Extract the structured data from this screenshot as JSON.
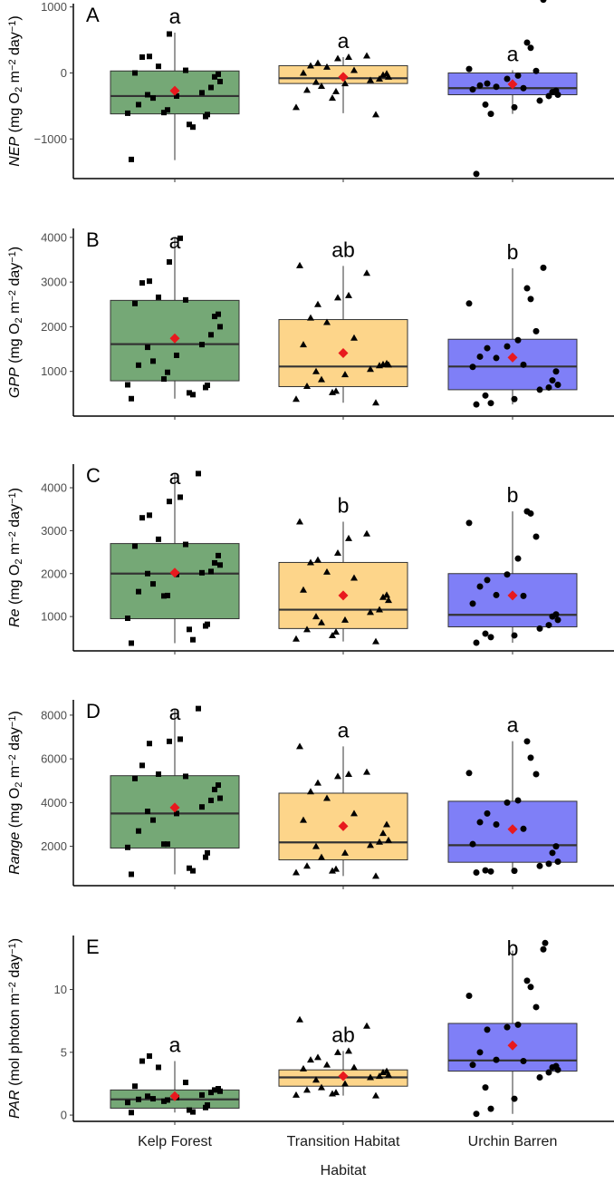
{
  "figure": {
    "x_axis_title": "Habitat",
    "categories": [
      "Kelp Forest",
      "Transition Habitat",
      "Urchin Barren"
    ],
    "colors": {
      "Kelp Forest": "#75a876",
      "Transition Habitat": "#fdd58a",
      "Urchin Barren": "#7f7ff7",
      "mean_marker": "#e8191e",
      "points": "#000000"
    },
    "markers": {
      "Kelp Forest": "square",
      "Transition Habitat": "triangle",
      "Urchin Barren": "circle"
    }
  },
  "chart_data": [
    {
      "type": "box",
      "panel": "A",
      "ylabel_var": "NEP",
      "ylabel_units": "(mg O",
      "ylabel_sub": "2",
      "ylabel_mid": " m",
      "ylabel_exp1": "−2",
      "ylabel_end": " day",
      "ylabel_exp2": "−1",
      "ylabel_close": ")",
      "ylim": [
        -1600,
        1050
      ],
      "yticks": [
        -1000,
        0,
        1000
      ],
      "yticklabels": [
        "−1000",
        "0",
        "1000"
      ],
      "boxes": [
        {
          "category": "Kelp Forest",
          "q1": -620,
          "median": -350,
          "q3": 30,
          "whisker_low": -1320,
          "whisker_high": 610,
          "mean": -270,
          "letter": "a",
          "points": [
            -1310,
            -820,
            -780,
            -660,
            -630,
            -610,
            -600,
            -560,
            -480,
            -380,
            -350,
            -330,
            -300,
            -220,
            -130,
            -60,
            -20,
            0,
            40,
            100,
            240,
            250,
            590
          ]
        },
        {
          "category": "Transition Habitat",
          "q1": -160,
          "median": -80,
          "q3": 110,
          "whisker_low": -610,
          "whisker_high": 240,
          "mean": -60,
          "letter": "a",
          "points": [
            -630,
            -520,
            -380,
            -280,
            -260,
            -200,
            -160,
            -140,
            -110,
            -90,
            -60,
            -30,
            -10,
            0,
            40,
            90,
            110,
            150,
            220,
            240,
            260
          ]
        },
        {
          "category": "Urchin Barren",
          "q1": -330,
          "median": -230,
          "q3": 0,
          "whisker_low": -620,
          "whisker_high": 40,
          "mean": -170,
          "letter": "a",
          "points": [
            -1530,
            -620,
            -520,
            -480,
            -420,
            -350,
            -330,
            -290,
            -270,
            -250,
            -230,
            -210,
            -190,
            -160,
            -90,
            -40,
            30,
            60,
            380,
            460,
            1110
          ]
        }
      ]
    },
    {
      "type": "box",
      "panel": "B",
      "ylabel_var": "GPP",
      "ylabel_units": "(mg O",
      "ylabel_sub": "2",
      "ylabel_mid": " m",
      "ylabel_exp1": "−2",
      "ylabel_end": " day",
      "ylabel_exp2": "−1",
      "ylabel_close": ")",
      "ylim": [
        0,
        4200
      ],
      "yticks": [
        1000,
        2000,
        3000,
        4000
      ],
      "yticklabels": [
        "1000",
        "2000",
        "3000",
        "4000"
      ],
      "boxes": [
        {
          "category": "Kelp Forest",
          "q1": 790,
          "median": 1610,
          "q3": 2590,
          "whisker_low": 390,
          "whisker_high": 4000,
          "mean": 1740,
          "letter": "a",
          "points": [
            390,
            480,
            520,
            640,
            690,
            700,
            830,
            980,
            1140,
            1230,
            1360,
            1540,
            1600,
            1820,
            2000,
            2230,
            2280,
            2520,
            2600,
            2660,
            2980,
            3020,
            3450,
            3980
          ]
        },
        {
          "category": "Transition Habitat",
          "q1": 660,
          "median": 1110,
          "q3": 2160,
          "whisker_low": 300,
          "whisker_high": 3360,
          "mean": 1410,
          "letter": "ab",
          "points": [
            300,
            380,
            530,
            560,
            670,
            820,
            930,
            1000,
            1050,
            1130,
            1150,
            1160,
            1180,
            1600,
            1750,
            2100,
            2200,
            2500,
            2650,
            2700,
            3200,
            3370
          ]
        },
        {
          "category": "Urchin Barren",
          "q1": 590,
          "median": 1110,
          "q3": 1720,
          "whisker_low": 260,
          "whisker_high": 3310,
          "mean": 1310,
          "letter": "b",
          "points": [
            260,
            290,
            380,
            460,
            590,
            640,
            700,
            800,
            1000,
            1100,
            1150,
            1300,
            1330,
            1520,
            1560,
            1700,
            1900,
            2520,
            2620,
            2860,
            3320
          ]
        }
      ]
    },
    {
      "type": "box",
      "panel": "C",
      "ylabel_var": "Re",
      "ylabel_units": "(mg O",
      "ylabel_sub": "2",
      "ylabel_mid": " m",
      "ylabel_exp1": "−2",
      "ylabel_end": " day",
      "ylabel_exp2": "−1",
      "ylabel_close": ")",
      "ylim": [
        200,
        4550
      ],
      "yticks": [
        1000,
        2000,
        3000,
        4000
      ],
      "yticklabels": [
        "1000",
        "2000",
        "3000",
        "4000"
      ],
      "boxes": [
        {
          "category": "Kelp Forest",
          "q1": 950,
          "median": 2000,
          "q3": 2700,
          "whisker_low": 380,
          "whisker_high": 4340,
          "mean": 2020,
          "letter": "a",
          "points": [
            380,
            460,
            700,
            780,
            820,
            960,
            1480,
            1490,
            1580,
            1760,
            1980,
            2000,
            2020,
            2050,
            2200,
            2250,
            2420,
            2640,
            2680,
            2800,
            3300,
            3360,
            3680,
            3780,
            4330
          ]
        },
        {
          "category": "Transition Habitat",
          "q1": 720,
          "median": 1160,
          "q3": 2260,
          "whisker_low": 420,
          "whisker_high": 3210,
          "mean": 1490,
          "letter": "b",
          "points": [
            420,
            480,
            560,
            640,
            700,
            860,
            920,
            1000,
            1100,
            1160,
            1380,
            1450,
            1500,
            1620,
            1900,
            2040,
            2260,
            2320,
            2480,
            2820,
            2930,
            3210
          ]
        },
        {
          "category": "Urchin Barren",
          "q1": 760,
          "median": 1040,
          "q3": 2000,
          "whisker_low": 390,
          "whisker_high": 3450,
          "mean": 1490,
          "letter": "b",
          "points": [
            390,
            520,
            560,
            600,
            720,
            800,
            920,
            1000,
            1050,
            1300,
            1480,
            1500,
            1700,
            1850,
            1980,
            2350,
            2860,
            3180,
            3400,
            3450
          ]
        }
      ]
    },
    {
      "type": "box",
      "panel": "D",
      "ylabel_var": "Range",
      "ylabel_units": "(mg O",
      "ylabel_sub": "2",
      "ylabel_mid": " m",
      "ylabel_exp1": "−2",
      "ylabel_end": " day",
      "ylabel_exp2": "−1",
      "ylabel_close": ")",
      "ylim": [
        200,
        8700
      ],
      "yticks": [
        2000,
        4000,
        6000,
        8000
      ],
      "yticklabels": [
        "2000",
        "4000",
        "6000",
        "8000"
      ],
      "boxes": [
        {
          "category": "Kelp Forest",
          "q1": 1920,
          "median": 3500,
          "q3": 5230,
          "whisker_low": 720,
          "whisker_high": 8300,
          "mean": 3770,
          "letter": "a",
          "points": [
            720,
            880,
            1000,
            1500,
            1700,
            1950,
            2100,
            2100,
            2700,
            3200,
            3500,
            3600,
            3800,
            4100,
            4200,
            4600,
            4800,
            5100,
            5200,
            5300,
            5700,
            6700,
            6800,
            6900,
            8300
          ]
        },
        {
          "category": "Transition Habitat",
          "q1": 1380,
          "median": 2180,
          "q3": 4430,
          "whisker_low": 640,
          "whisker_high": 6570,
          "mean": 2920,
          "letter": "a",
          "points": [
            640,
            800,
            880,
            960,
            1100,
            1500,
            1700,
            2000,
            2050,
            2200,
            2280,
            2600,
            3000,
            3200,
            3500,
            4200,
            4500,
            4900,
            5200,
            5300,
            5400,
            6570
          ]
        },
        {
          "category": "Urchin Barren",
          "q1": 1270,
          "median": 2050,
          "q3": 4060,
          "whisker_low": 800,
          "whisker_high": 6810,
          "mean": 2780,
          "letter": "a",
          "points": [
            800,
            850,
            880,
            900,
            1100,
            1200,
            1300,
            1700,
            2000,
            2100,
            2800,
            3000,
            3100,
            3500,
            4000,
            4100,
            5300,
            5350,
            6050,
            6800
          ]
        }
      ]
    },
    {
      "type": "box",
      "panel": "E",
      "ylabel_var": "PAR",
      "ylabel_units": "(mol photon m",
      "ylabel_sub": "",
      "ylabel_mid": "",
      "ylabel_exp1": "−2",
      "ylabel_end": " day",
      "ylabel_exp2": "−1",
      "ylabel_close": ")",
      "ylim": [
        -0.5,
        14.3
      ],
      "yticks": [
        0,
        5,
        10
      ],
      "yticklabels": [
        "0",
        "5",
        "10"
      ],
      "boxes": [
        {
          "category": "Kelp Forest",
          "q1": 0.55,
          "median": 1.25,
          "q3": 2.0,
          "whisker_low": 0.2,
          "whisker_high": 4.3,
          "mean": 1.5,
          "letter": "a",
          "points": [
            0.2,
            0.25,
            0.4,
            0.6,
            0.8,
            1.0,
            1.1,
            1.2,
            1.25,
            1.3,
            1.4,
            1.5,
            1.6,
            1.8,
            1.9,
            2.0,
            2.1,
            2.3,
            2.6,
            3.8,
            4.3,
            4.7
          ]
        },
        {
          "category": "Transition Habitat",
          "q1": 2.3,
          "median": 3.0,
          "q3": 3.6,
          "whisker_low": 1.55,
          "whisker_high": 5.1,
          "mean": 3.1,
          "letter": "ab",
          "points": [
            1.55,
            1.6,
            1.7,
            1.8,
            2.0,
            2.2,
            2.5,
            2.8,
            3.0,
            3.1,
            3.2,
            3.4,
            3.5,
            3.7,
            3.8,
            4.0,
            4.4,
            4.6,
            5.0,
            5.1,
            7.1,
            7.6
          ]
        },
        {
          "category": "Urchin Barren",
          "q1": 3.5,
          "median": 4.35,
          "q3": 7.3,
          "whisker_low": 0.1,
          "whisker_high": 13.1,
          "mean": 5.55,
          "letter": "b",
          "points": [
            0.1,
            0.5,
            1.3,
            2.2,
            3.0,
            3.4,
            3.6,
            3.8,
            3.9,
            4.0,
            4.3,
            4.4,
            5.0,
            6.8,
            7.0,
            7.2,
            8.6,
            9.5,
            10.2,
            10.7,
            13.2,
            13.7
          ]
        }
      ]
    }
  ]
}
